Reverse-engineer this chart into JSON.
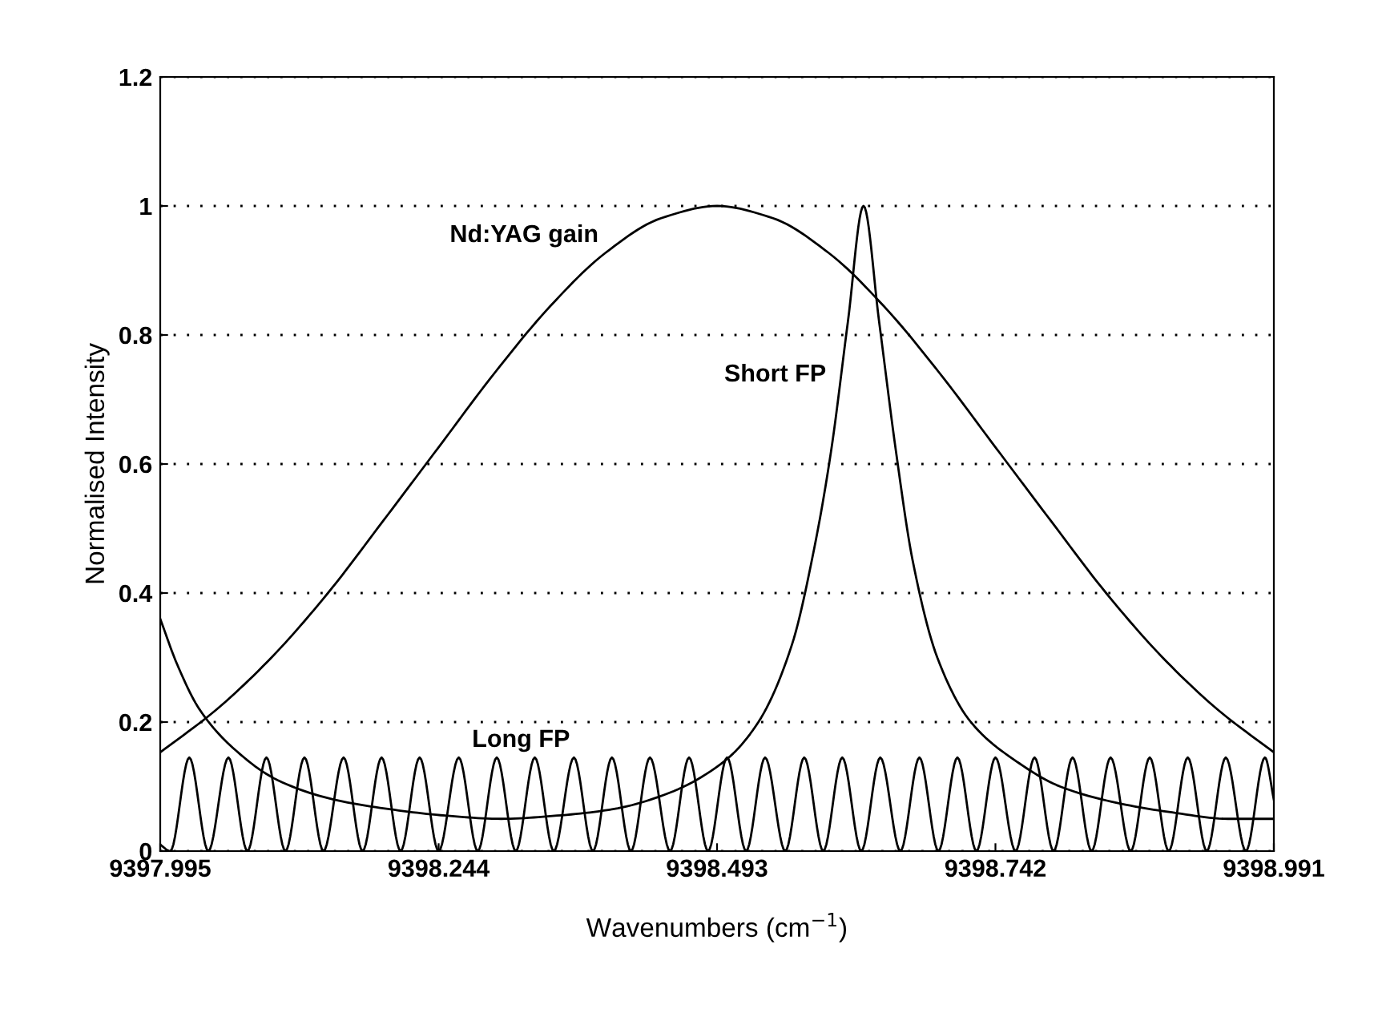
{
  "chart_data": {
    "type": "line",
    "xlabel": "Wavenumbers (cm$^{−1}$)",
    "ylabel": "Normalised Intensity",
    "xlim": [
      9397.995,
      9398.991
    ],
    "xticks": [
      9397.995,
      9398.244,
      9398.493,
      9398.742,
      9398.991
    ],
    "ylim": [
      0,
      1.2
    ],
    "yticks": [
      0,
      0.2,
      0.4,
      0.6,
      0.8,
      1,
      1.2
    ],
    "grid": "y",
    "legend": false,
    "marker": "none",
    "line_style": "solid",
    "series": [
      {
        "name": "Nd:YAG gain",
        "color": "#000000",
        "x": [
          9397.995,
          9398.045,
          9398.095,
          9398.145,
          9398.194,
          9398.244,
          9398.294,
          9398.344,
          9398.393,
          9398.443,
          9398.493,
          9398.543,
          9398.593,
          9398.642,
          9398.692,
          9398.742,
          9398.792,
          9398.841,
          9398.891,
          9398.941,
          9398.991
        ],
        "values": [
          0.153,
          0.219,
          0.301,
          0.4,
          0.511,
          0.626,
          0.741,
          0.845,
          0.927,
          0.981,
          1,
          0.981,
          0.927,
          0.845,
          0.741,
          0.626,
          0.511,
          0.4,
          0.301,
          0.219,
          0.153
        ]
      },
      {
        "name": "Short FP",
        "color": "#000000",
        "x": [
          9397.995,
          9398.01,
          9398.03,
          9398.06,
          9398.1,
          9398.15,
          9398.2,
          9398.25,
          9398.3,
          9398.35,
          9398.4,
          9398.45,
          9398.5,
          9398.53,
          9398.56,
          9398.58,
          9398.595,
          9398.61,
          9398.624,
          9398.638,
          9398.653,
          9398.668,
          9398.69,
          9398.72,
          9398.76,
          9398.8,
          9398.85,
          9398.9,
          9398.95,
          9398.991
        ],
        "values": [
          0.36,
          0.29,
          0.22,
          0.16,
          0.11,
          0.08,
          0.065,
          0.055,
          0.05,
          0.055,
          0.065,
          0.09,
          0.14,
          0.2,
          0.32,
          0.47,
          0.62,
          0.82,
          1,
          0.82,
          0.62,
          0.45,
          0.3,
          0.2,
          0.14,
          0.1,
          0.075,
          0.06,
          0.05,
          0.05
        ]
      },
      {
        "name": "Long FP",
        "color": "#000000",
        "x": [
          9397.995,
          9398.004,
          9398.021,
          9398.038,
          9398.056,
          9398.073,
          9398.09,
          9398.107,
          9398.124,
          9398.141,
          9398.159,
          9398.176,
          9398.193,
          9398.21,
          9398.227,
          9398.244,
          9398.262,
          9398.279,
          9398.296,
          9398.313,
          9398.33,
          9398.347,
          9398.365,
          9398.382,
          9398.399,
          9398.416,
          9398.433,
          9398.451,
          9398.468,
          9398.485,
          9398.502,
          9398.519,
          9398.536,
          9398.554,
          9398.571,
          9398.588,
          9398.605,
          9398.622,
          9398.639,
          9398.657,
          9398.674,
          9398.691,
          9398.708,
          9398.725,
          9398.742,
          9398.76,
          9398.777,
          9398.794,
          9398.811,
          9398.828,
          9398.845,
          9398.863,
          9398.88,
          9398.897,
          9398.914,
          9398.931,
          9398.948,
          9398.966,
          9398.983,
          9398.991
        ],
        "values": [
          0.01,
          0,
          0.145,
          0,
          0.145,
          0,
          0.145,
          0,
          0.145,
          0,
          0.145,
          0,
          0.145,
          0,
          0.145,
          0,
          0.145,
          0,
          0.145,
          0,
          0.145,
          0,
          0.145,
          0,
          0.145,
          0,
          0.145,
          0,
          0.145,
          0,
          0.145,
          0,
          0.145,
          0,
          0.145,
          0,
          0.145,
          0,
          0.145,
          0,
          0.145,
          0,
          0.145,
          0,
          0.145,
          0,
          0.145,
          0,
          0.145,
          0,
          0.145,
          0,
          0.145,
          0,
          0.145,
          0,
          0.145,
          0,
          0.145,
          0.08
        ]
      }
    ]
  }
}
